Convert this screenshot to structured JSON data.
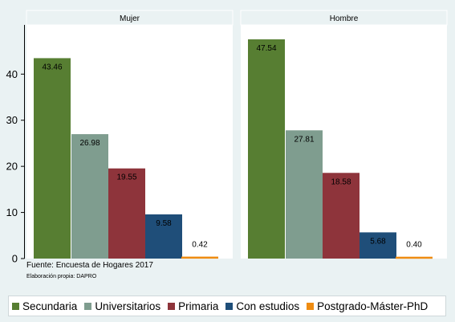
{
  "colors": {
    "Secundaria": "#577e32",
    "Universitarios": "#7f9d8f",
    "Primaria": "#8e343b",
    "Con estudios": "#1f4e79",
    "Postgrado-Máster-PhD": "#ef8c12",
    "panel_bg": "#ffffff",
    "page_bg": "#eaf2f3"
  },
  "chart_data": {
    "type": "bar",
    "categories": [
      "Secundaria",
      "Universitarios",
      "Primaria",
      "Con estudios",
      "Postgrado-Máster-PhD"
    ],
    "panels": [
      {
        "title": "Mujer",
        "values": [
          43.46,
          26.98,
          19.55,
          9.58,
          0.42
        ],
        "labels": [
          "43.46",
          "26.98",
          "19.55",
          "9.58",
          "0.42"
        ]
      },
      {
        "title": "Hombre",
        "values": [
          47.54,
          27.81,
          18.58,
          5.68,
          0.4
        ],
        "labels": [
          "47.54",
          "27.81",
          "18.58",
          "5.68",
          "0.40"
        ]
      }
    ],
    "ylim": [
      0,
      47.54
    ],
    "yticks": [
      0,
      10,
      20,
      30,
      40
    ],
    "grid": false,
    "legend_position": "bottom"
  },
  "notes": {
    "source": "Fuente: Encuesta de Hogares 2017",
    "credit": "Elaboración propia: DAPRO"
  }
}
